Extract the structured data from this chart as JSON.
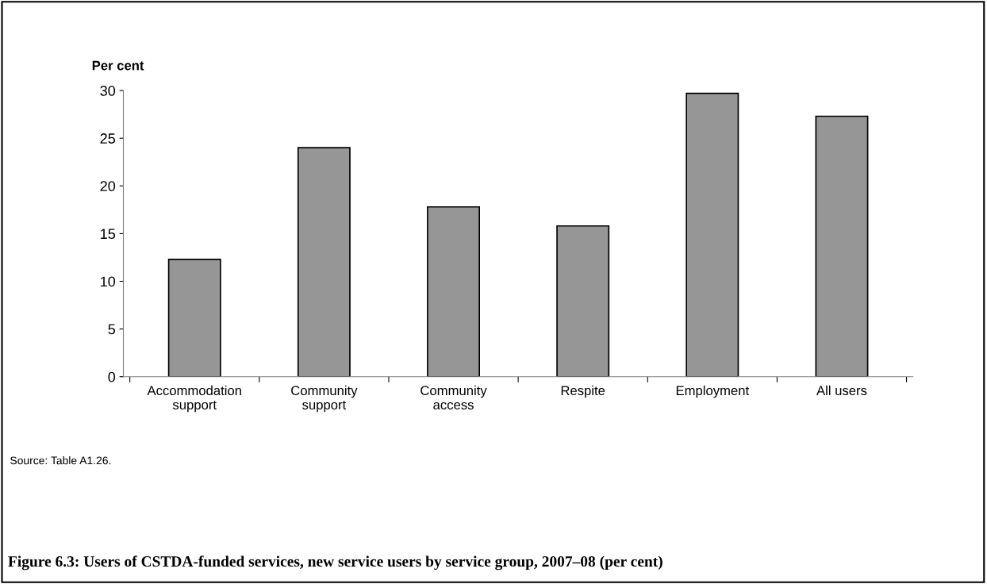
{
  "chart_data": {
    "type": "bar",
    "title": "Figure 6.3: Users of CSTDA-funded services, new service users by service group, 2007–08 (per cent)",
    "ylabel": "Per cent",
    "categories": [
      "Accommodation\nsupport",
      "Community\nsupport",
      "Community\naccess",
      "Respite",
      "Employment",
      "All users"
    ],
    "values": [
      12.3,
      24.0,
      17.8,
      15.8,
      29.7,
      27.3
    ],
    "color": "#969696",
    "ylim": [
      0,
      30
    ],
    "yticks": [
      0,
      5,
      10,
      15,
      20,
      25,
      30
    ],
    "grid": false,
    "legend": false,
    "annotations": [
      "Source: Table A1.26."
    ]
  }
}
